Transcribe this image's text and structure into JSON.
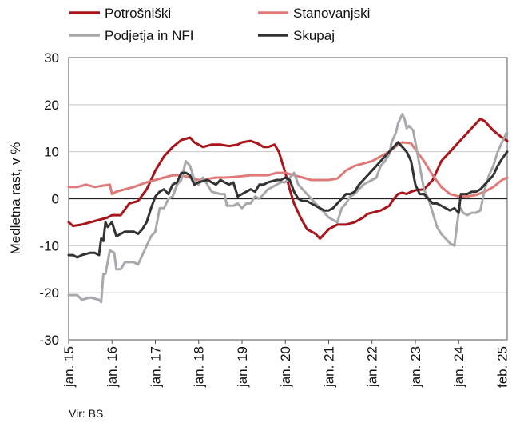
{
  "chart_data": {
    "type": "line",
    "title": "",
    "xlabel": "",
    "ylabel": "Medletna rast, v %",
    "ylim": [
      -30,
      30
    ],
    "yticks": [
      "30",
      "20",
      "10",
      "0",
      "-10",
      "-20",
      "-30"
    ],
    "xlim": [
      2015.0,
      2025.12
    ],
    "x_ticks": [
      {
        "label": "jan. 15",
        "x": 2015.0
      },
      {
        "label": "jan. 16",
        "x": 2016.0
      },
      {
        "label": "jan. 17",
        "x": 2017.0
      },
      {
        "label": "jan. 18",
        "x": 2018.0
      },
      {
        "label": "jan. 19",
        "x": 2019.0
      },
      {
        "label": "jan. 20",
        "x": 2020.0
      },
      {
        "label": "jan. 21",
        "x": 2021.0
      },
      {
        "label": "jan. 22",
        "x": 2022.0
      },
      {
        "label": "jan. 23",
        "x": 2023.0
      },
      {
        "label": "jan. 24",
        "x": 2024.0
      },
      {
        "label": "feb. 25",
        "x": 2025.0
      }
    ],
    "grid": "horizontal",
    "legend_position": "top",
    "source": "Vir: BS.",
    "series": [
      {
        "name": "Potrošniški",
        "color": "#a8151b",
        "x": [
          2015.0,
          2015.1,
          2015.3,
          2015.5,
          2015.7,
          2015.9,
          2016.0,
          2016.2,
          2016.4,
          2016.6,
          2016.8,
          2016.9,
          2017.0,
          2017.2,
          2017.4,
          2017.6,
          2017.8,
          2017.9,
          2018.1,
          2018.3,
          2018.5,
          2018.7,
          2018.9,
          2019.0,
          2019.2,
          2019.35,
          2019.5,
          2019.6,
          2019.75,
          2019.85,
          2020.0,
          2020.1,
          2020.2,
          2020.35,
          2020.5,
          2020.7,
          2020.8,
          2020.95,
          2021.0,
          2021.1,
          2021.2,
          2021.4,
          2021.6,
          2021.8,
          2021.9,
          2022.0,
          2022.2,
          2022.4,
          2022.5,
          2022.6,
          2022.7,
          2022.8,
          2022.9,
          2023.0,
          2023.2,
          2023.4,
          2023.6,
          2023.8,
          2024.0,
          2024.2,
          2024.4,
          2024.5,
          2024.6,
          2024.7,
          2024.8,
          2025.0,
          2025.12
        ],
        "y": [
          -5,
          -5.8,
          -5.5,
          -5,
          -4.5,
          -4,
          -3.5,
          -3.5,
          -1,
          -0.5,
          2,
          4,
          6,
          9,
          11,
          12.5,
          13,
          12,
          11,
          11.5,
          11.5,
          11.2,
          11.5,
          12,
          12.3,
          11.8,
          11,
          11,
          11.5,
          10,
          5.5,
          2,
          -1,
          -4,
          -6.5,
          -7.5,
          -8.5,
          -7,
          -6.5,
          -6,
          -5.5,
          -5.5,
          -5,
          -4,
          -3.2,
          -3,
          -2.5,
          -1.5,
          0,
          1,
          1.3,
          1,
          1.5,
          1.8,
          2,
          4,
          8,
          10,
          12,
          14,
          16,
          17,
          16.5,
          15.5,
          14.5,
          13,
          12.3
        ]
      },
      {
        "name": "Stanovanjski",
        "color": "#e07a78",
        "x": [
          2015.0,
          2015.2,
          2015.4,
          2015.6,
          2015.8,
          2015.95,
          2016.0,
          2016.1,
          2016.3,
          2016.5,
          2016.8,
          2017.0,
          2017.2,
          2017.4,
          2017.6,
          2017.8,
          2018.0,
          2018.2,
          2018.4,
          2018.6,
          2018.8,
          2019.0,
          2019.2,
          2019.4,
          2019.6,
          2019.8,
          2020.0,
          2020.2,
          2020.4,
          2020.6,
          2020.8,
          2021.0,
          2021.2,
          2021.4,
          2021.6,
          2021.8,
          2022.0,
          2022.2,
          2022.4,
          2022.6,
          2022.7,
          2022.9,
          2023.0,
          2023.2,
          2023.4,
          2023.6,
          2023.8,
          2024.0,
          2024.2,
          2024.4,
          2024.6,
          2024.8,
          2025.0,
          2025.12
        ],
        "y": [
          2.5,
          2.5,
          3,
          2.5,
          2.8,
          3,
          1,
          1.5,
          2,
          2.5,
          3.5,
          4,
          4.5,
          5,
          5,
          4.5,
          4,
          4.2,
          4.5,
          4.5,
          4.6,
          4.8,
          5,
          5,
          5,
          5.5,
          5.5,
          5,
          4.5,
          4,
          4,
          4,
          4.3,
          6,
          7,
          7.5,
          8,
          9,
          10,
          11.5,
          12,
          11.8,
          10.5,
          8,
          5,
          2.5,
          1,
          0.5,
          0.5,
          0.8,
          1.5,
          2.5,
          4,
          4.5
        ]
      },
      {
        "name": "Podjetja in NFI",
        "color": "#a7a9ac",
        "x": [
          2015.0,
          2015.2,
          2015.3,
          2015.5,
          2015.7,
          2015.75,
          2015.8,
          2015.85,
          2015.95,
          2016.05,
          2016.1,
          2016.2,
          2016.3,
          2016.5,
          2016.6,
          2016.7,
          2016.8,
          2016.9,
          2017.0,
          2017.1,
          2017.2,
          2017.3,
          2017.4,
          2017.5,
          2017.6,
          2017.7,
          2017.8,
          2017.9,
          2018.0,
          2018.1,
          2018.2,
          2018.3,
          2018.5,
          2018.6,
          2018.65,
          2018.8,
          2018.9,
          2019.0,
          2019.1,
          2019.2,
          2019.3,
          2019.4,
          2019.5,
          2019.6,
          2019.7,
          2019.8,
          2019.9,
          2020.0,
          2020.1,
          2020.2,
          2020.3,
          2020.4,
          2020.5,
          2020.7,
          2020.8,
          2020.9,
          2021.0,
          2021.1,
          2021.2,
          2021.3,
          2021.4,
          2021.5,
          2021.6,
          2021.7,
          2021.8,
          2021.9,
          2022.0,
          2022.1,
          2022.2,
          2022.3,
          2022.4,
          2022.45,
          2022.5,
          2022.55,
          2022.6,
          2022.7,
          2022.75,
          2022.8,
          2022.85,
          2022.95,
          2023.0,
          2023.1,
          2023.2,
          2023.3,
          2023.4,
          2023.5,
          2023.6,
          2023.7,
          2023.8,
          2023.9,
          2024.0,
          2024.05,
          2024.1,
          2024.2,
          2024.3,
          2024.4,
          2024.5,
          2024.6,
          2024.7,
          2024.8,
          2024.9,
          2025.0,
          2025.1,
          2025.12
        ],
        "y": [
          -20.5,
          -20.5,
          -21.5,
          -21,
          -21.5,
          -22,
          -16,
          -16,
          -11,
          -11.5,
          -15,
          -15,
          -13.5,
          -13.5,
          -14,
          -12,
          -10,
          -8,
          -7,
          -2,
          -2,
          0,
          0.5,
          3,
          4,
          8,
          7,
          4,
          3,
          4.5,
          3,
          1.5,
          1,
          1,
          -1.5,
          -1.5,
          -1,
          -2,
          -1,
          -1,
          0.5,
          0,
          1,
          2,
          2.5,
          3,
          3.5,
          3.5,
          4.5,
          5.5,
          3,
          2,
          1,
          -1,
          -2,
          -3,
          -4,
          -4.5,
          -5,
          -2,
          -1,
          0.5,
          1,
          2,
          3,
          3.5,
          4,
          4.5,
          7,
          8,
          9.5,
          12,
          13,
          14,
          16,
          18,
          17,
          15,
          15.5,
          14.5,
          12,
          7,
          2,
          0,
          -3,
          -6,
          -7.5,
          -8.5,
          -9.5,
          -10,
          -3,
          -2,
          -3,
          -3.5,
          -3,
          -3,
          -2.5,
          2,
          5,
          7,
          10,
          12,
          14,
          14
        ]
      },
      {
        "name": "Skupaj",
        "color": "#333333",
        "x": [
          2015.0,
          2015.1,
          2015.2,
          2015.3,
          2015.5,
          2015.6,
          2015.7,
          2015.75,
          2015.8,
          2015.85,
          2015.9,
          2016.0,
          2016.1,
          2016.2,
          2016.3,
          2016.4,
          2016.5,
          2016.6,
          2016.7,
          2016.8,
          2016.9,
          2017.0,
          2017.1,
          2017.2,
          2017.3,
          2017.4,
          2017.5,
          2017.6,
          2017.7,
          2017.8,
          2017.9,
          2018.0,
          2018.2,
          2018.4,
          2018.5,
          2018.6,
          2018.7,
          2018.8,
          2018.9,
          2019.0,
          2019.1,
          2019.2,
          2019.3,
          2019.4,
          2019.5,
          2019.6,
          2019.8,
          2019.9,
          2020.0,
          2020.1,
          2020.2,
          2020.3,
          2020.4,
          2020.5,
          2020.6,
          2020.7,
          2020.8,
          2020.9,
          2021.0,
          2021.1,
          2021.2,
          2021.3,
          2021.4,
          2021.5,
          2021.6,
          2021.7,
          2021.8,
          2021.9,
          2022.0,
          2022.1,
          2022.2,
          2022.3,
          2022.4,
          2022.5,
          2022.6,
          2022.7,
          2022.8,
          2022.85,
          2022.9,
          2023.0,
          2023.1,
          2023.2,
          2023.3,
          2023.4,
          2023.5,
          2023.6,
          2023.7,
          2023.8,
          2023.9,
          2024.0,
          2024.05,
          2024.1,
          2024.2,
          2024.3,
          2024.4,
          2024.5,
          2024.6,
          2024.7,
          2024.8,
          2024.9,
          2025.0,
          2025.12
        ],
        "y": [
          -12,
          -12,
          -12.5,
          -12,
          -11.5,
          -11.5,
          -12,
          -8.5,
          -9,
          -5,
          -6,
          -5,
          -8,
          -7.5,
          -7,
          -7,
          -7,
          -7.5,
          -6.5,
          -5,
          -2,
          0.5,
          1.5,
          2,
          1,
          3,
          3.5,
          5.5,
          5.5,
          5,
          3,
          3.5,
          4,
          3,
          4,
          3.5,
          3,
          3.5,
          0.5,
          1,
          1.5,
          2,
          1.5,
          3,
          3,
          3.5,
          4,
          4,
          4.5,
          4,
          1.5,
          0,
          -0.5,
          -0.5,
          -1,
          -1.5,
          -2,
          -2.5,
          -2.5,
          -2,
          -1,
          0,
          1,
          1,
          1.5,
          3,
          4,
          5,
          6,
          7,
          8,
          9,
          10,
          11,
          12,
          11,
          10,
          9,
          8,
          3,
          1,
          1,
          0,
          -1,
          -1,
          -1.5,
          -2,
          -2.5,
          -2,
          -3,
          1,
          1,
          1,
          1.5,
          1.5,
          2,
          3,
          4,
          5,
          7,
          8.5,
          10
        ]
      }
    ]
  }
}
